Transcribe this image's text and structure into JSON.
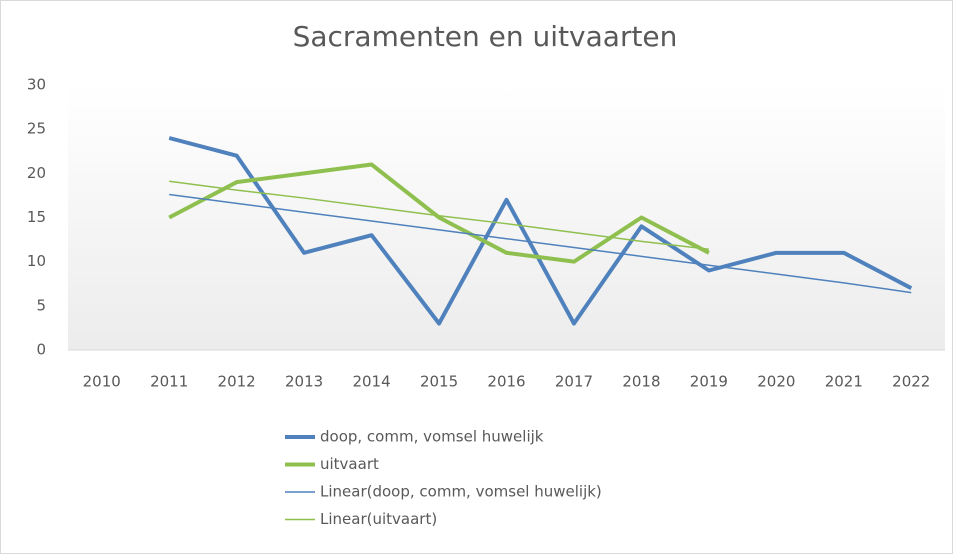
{
  "chart_data": {
    "type": "line",
    "title": "Sacramenten en uitvaarten",
    "categories": [
      "2010",
      "2011",
      "2012",
      "2013",
      "2014",
      "2015",
      "2016",
      "2017",
      "2018",
      "2019",
      "2020",
      "2021",
      "2022"
    ],
    "series": [
      {
        "name": "doop, comm, vomsel huwelijk",
        "color": "#4f81bd",
        "width": 4,
        "values": [
          null,
          24,
          22,
          11,
          13,
          3,
          17,
          3,
          14,
          9,
          11,
          11,
          7
        ]
      },
      {
        "name": "uitvaart",
        "color": "#8fc04f",
        "width": 4,
        "values": [
          null,
          15,
          19,
          20,
          21,
          15,
          11,
          10,
          15,
          11,
          null,
          null,
          null
        ]
      },
      {
        "name": "Linear(doop, comm, vomsel huwelijk)",
        "color": "#4f81bd",
        "width": 1.5,
        "values": [
          null,
          17.6,
          16.6,
          15.6,
          14.6,
          13.6,
          12.6,
          11.6,
          10.6,
          9.6,
          8.6,
          7.6,
          6.5
        ]
      },
      {
        "name": "Linear(uitvaart)",
        "color": "#8fc04f",
        "width": 1.5,
        "values": [
          null,
          19.1,
          18.1,
          17.2,
          16.2,
          15.2,
          14.3,
          13.3,
          12.3,
          11.4,
          null,
          null,
          null
        ]
      }
    ],
    "ylim": [
      0,
      30
    ],
    "yticks": [
      0,
      5,
      10,
      15,
      20,
      25,
      30
    ],
    "grid": false,
    "legend": "bottom"
  }
}
